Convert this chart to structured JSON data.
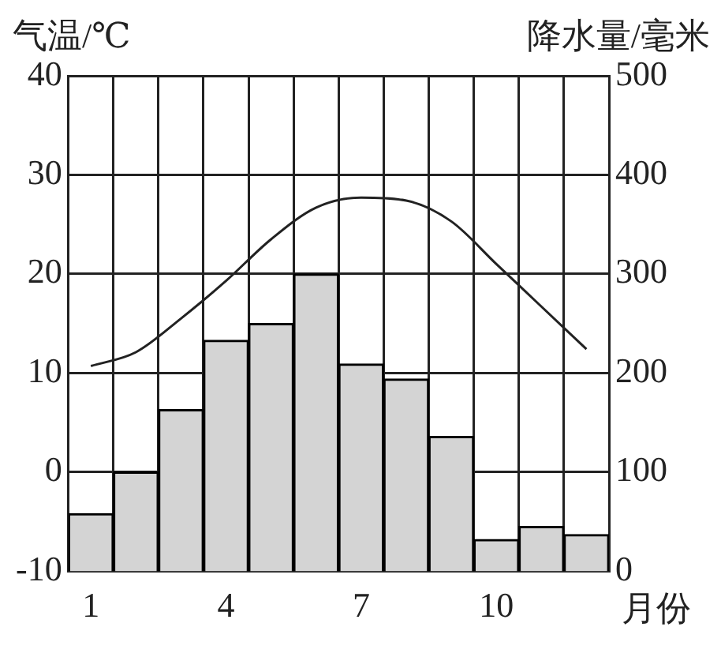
{
  "chart_data": {
    "type": "bar",
    "categories": [
      "1",
      null,
      null,
      "4",
      null,
      null,
      "7",
      null,
      null,
      "10",
      null,
      null
    ],
    "xlabel": "月份",
    "ylabel": "气温/℃",
    "y2label": "降水量/毫米",
    "series": [
      {
        "axis": "y2",
        "color": "#d4d4d4",
        "values": [
          58,
          100,
          163,
          233,
          250,
          300,
          209,
          194,
          136,
          32,
          45,
          37
        ]
      },
      {
        "type": "line",
        "axis": "y",
        "color": "#222222",
        "values": [
          10.7,
          12.1,
          15.5,
          19.3,
          23.5,
          26.7,
          27.7,
          27.4,
          25.3,
          21,
          16.7,
          12.4
        ]
      }
    ],
    "ylim": [
      -10,
      40
    ],
    "yticks": [
      -10,
      0,
      10,
      20,
      30,
      40
    ],
    "y2lim": [
      0,
      500
    ],
    "y2ticks": [
      0,
      100,
      200,
      300,
      400,
      500
    ],
    "grid": true,
    "legend": false,
    "marker": "none",
    "line_style": "solid"
  }
}
